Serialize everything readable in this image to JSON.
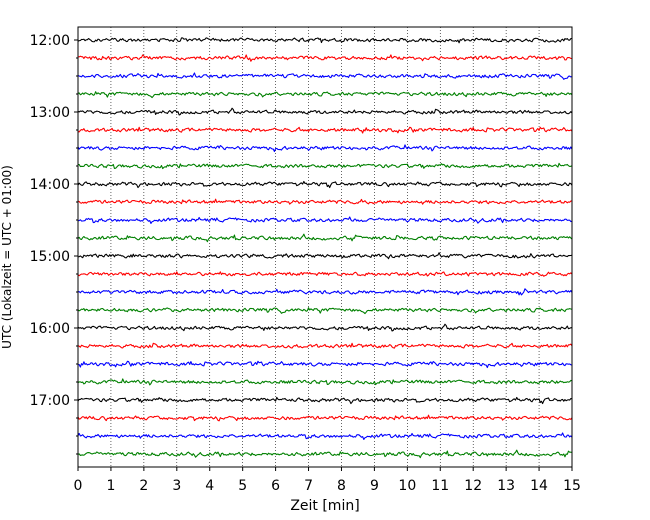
{
  "chart_data": {
    "type": "line",
    "subtype": "helicorder",
    "xlabel": "Zeit  [min]",
    "ylabel": "UTC (Lokalzeit = UTC + 01:00)",
    "xlim": [
      0,
      15
    ],
    "xticks": [
      0,
      1,
      2,
      3,
      4,
      5,
      6,
      7,
      8,
      9,
      10,
      11,
      12,
      13,
      14,
      15
    ],
    "ytick_labels": [
      "12:00",
      "13:00",
      "14:00",
      "15:00",
      "16:00",
      "17:00"
    ],
    "trace_interval_minutes": 15,
    "trace_count": 24,
    "trace_start": "12:00",
    "trace_colors": [
      "#000000",
      "#ff0000",
      "#0000ff",
      "#008000"
    ],
    "grid": "vertical dotted",
    "legend": "none"
  }
}
